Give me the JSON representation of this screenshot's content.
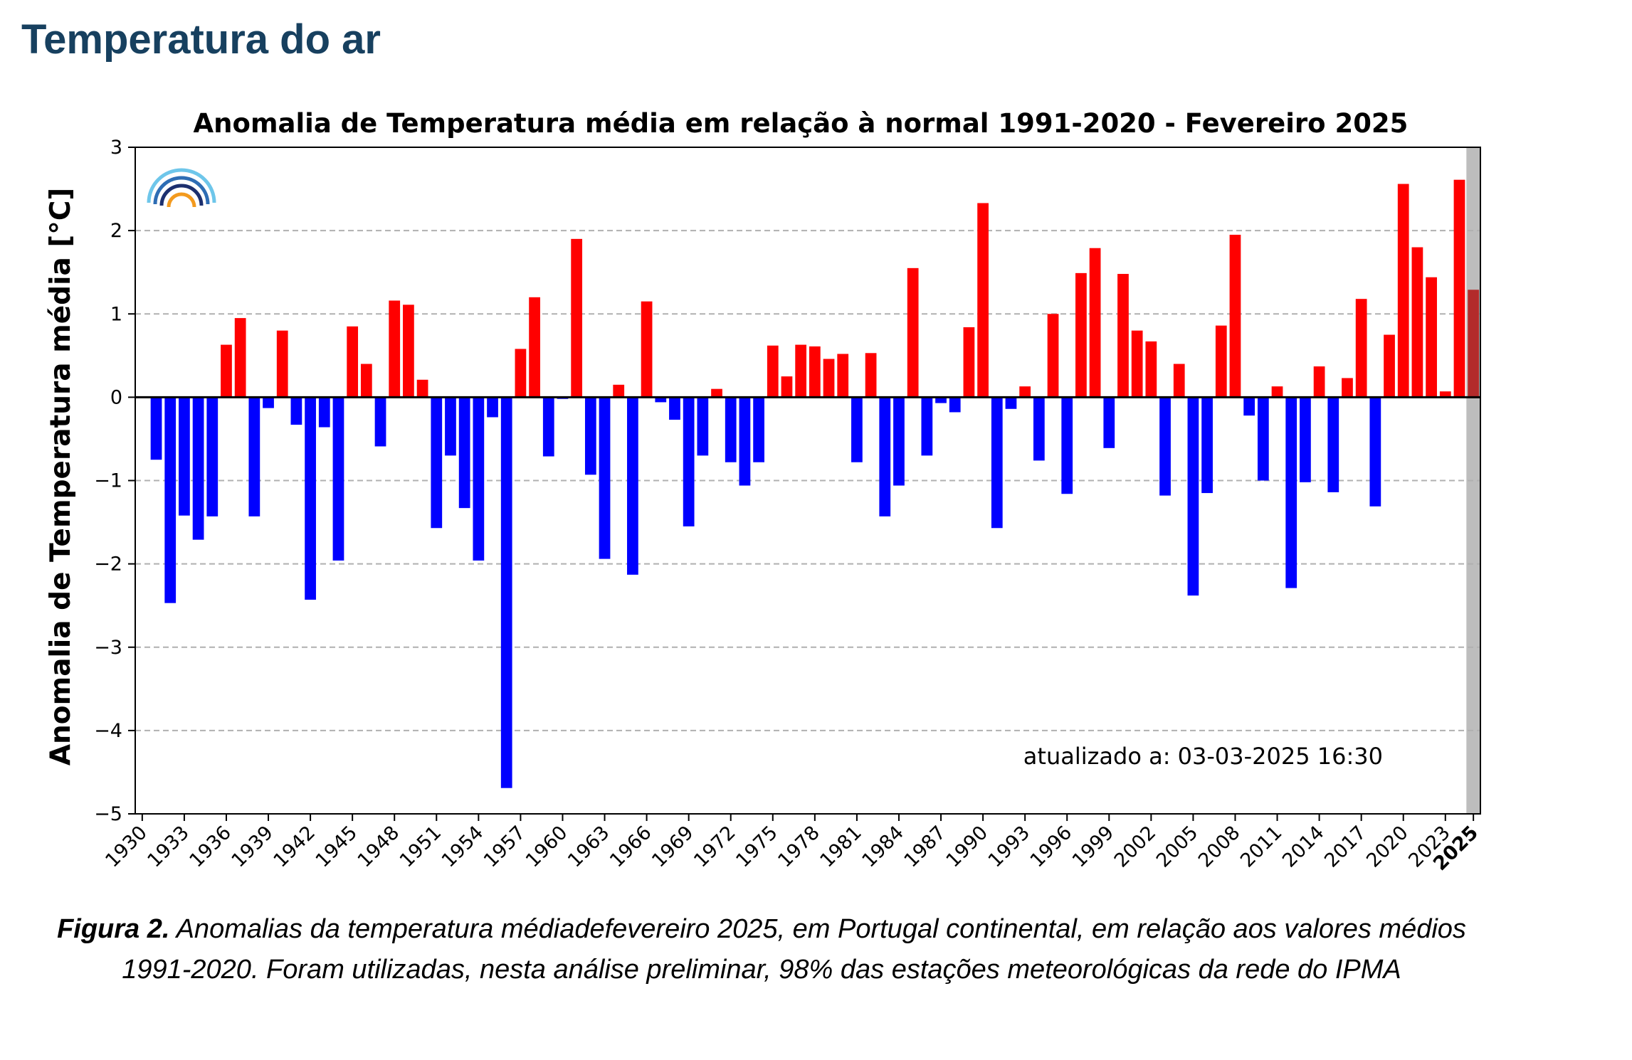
{
  "page": {
    "heading": "Temperatura do ar",
    "caption_label": "Figura 2.",
    "caption_text": " Anomalias da temperatura médiadefevereiro 2025, em Portugal continental, em relação aos valores médios 1991-2020. Foram utilizadas, nesta análise preliminar, 98% das estações meteorológicas da rede do IPMA"
  },
  "chart_data": {
    "type": "bar",
    "title": "Anomalia de Temperatura média em relação à normal 1991-2020 - Fevereiro 2025",
    "xlabel": "",
    "ylabel": "Anomalia de Temperatura média [°C]",
    "ylim": [
      -5,
      3
    ],
    "yticks": [
      "3",
      "2",
      "1",
      "0",
      "−1",
      "−2",
      "−3",
      "−4",
      "−5"
    ],
    "xlim": [
      1929.5,
      2025.5
    ],
    "xticks": [
      "1930",
      "1933",
      "1936",
      "1939",
      "1942",
      "1945",
      "1948",
      "1951",
      "1954",
      "1957",
      "1960",
      "1963",
      "1966",
      "1969",
      "1972",
      "1975",
      "1978",
      "1981",
      "1984",
      "1987",
      "1990",
      "1993",
      "1996",
      "1999",
      "2002",
      "2005",
      "2008",
      "2011",
      "2014",
      "2017",
      "2020",
      "2023",
      "2025"
    ],
    "highlight_tick": "2025",
    "grid": "horizontal dashed",
    "annotation": "atualizado a: 03-03-2025 16:30",
    "colors": {
      "positive": "#ff0000",
      "negative": "#0000ff",
      "current": "#b32b2b",
      "highlight_band": "#bdbdbd",
      "heading": "#17405f"
    },
    "first_year": 1931,
    "current_year": 2025,
    "values": [
      -0.75,
      -2.47,
      -1.42,
      -1.71,
      -1.43,
      0.63,
      0.95,
      -1.43,
      -0.13,
      0.8,
      -0.33,
      -2.43,
      -0.36,
      -1.96,
      0.85,
      0.4,
      -0.59,
      1.16,
      1.11,
      0.21,
      -1.57,
      -0.7,
      -1.33,
      -1.96,
      -0.24,
      -4.69,
      0.58,
      1.2,
      -0.71,
      -0.02,
      1.9,
      -0.93,
      -1.94,
      0.15,
      -2.13,
      1.15,
      -0.06,
      -0.27,
      -1.55,
      -0.7,
      0.1,
      -0.78,
      -1.06,
      -0.78,
      0.62,
      0.25,
      0.63,
      0.61,
      0.46,
      0.52,
      -0.78,
      0.53,
      -1.43,
      -1.06,
      1.55,
      -0.7,
      -0.07,
      -0.18,
      0.84,
      2.33,
      -1.57,
      -0.14,
      0.13,
      -0.76,
      1.0,
      -1.16,
      1.49,
      1.79,
      -0.61,
      1.48,
      0.8,
      0.67,
      -1.18,
      0.4,
      -2.38,
      -1.15,
      0.86,
      1.95,
      -0.22,
      -1.0,
      0.13,
      -2.29,
      -1.02,
      0.37,
      -1.14,
      0.23,
      1.18,
      -1.31,
      0.75,
      2.56,
      1.8,
      1.44,
      0.07,
      2.61,
      1.29
    ]
  }
}
